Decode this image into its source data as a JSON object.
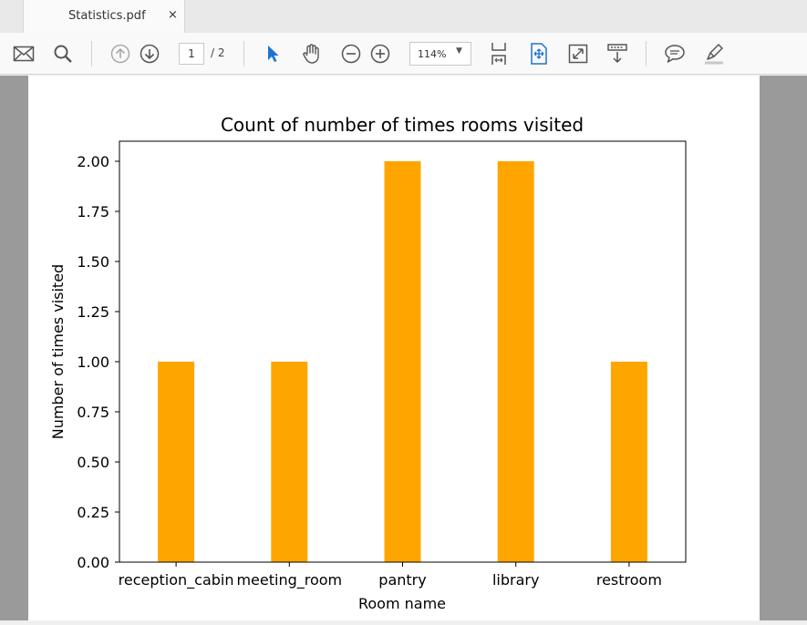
{
  "tab": {
    "title": "Statistics.pdf",
    "close": "×"
  },
  "toolbar": {
    "page_current": "1",
    "page_total": "/  2",
    "zoom": "114%",
    "icons": [
      "mail-icon",
      "search-icon",
      "page-up-icon",
      "page-down-icon",
      "select-cursor-icon",
      "hand-tool-icon",
      "zoom-out-icon",
      "zoom-in-icon",
      "fit-page-icon",
      "fit-width-icon",
      "full-screen-icon",
      "scroll-mode-icon",
      "comment-icon",
      "highlight-icon"
    ]
  },
  "colors": {
    "bar": "#ffa500",
    "accent": "#1e73d2"
  },
  "chart_data": {
    "type": "bar",
    "title": "Count of number of times rooms visited",
    "xlabel": "Room name",
    "ylabel": "Number of times visited",
    "categories": [
      "reception_cabin",
      "meeting_room",
      "pantry",
      "library",
      "restroom"
    ],
    "values": [
      1,
      1,
      2,
      2,
      1
    ],
    "ylim": [
      0,
      2.1
    ],
    "yticks": [
      "0.00",
      "0.25",
      "0.50",
      "0.75",
      "1.00",
      "1.25",
      "1.50",
      "1.75",
      "2.00"
    ],
    "grid": false
  }
}
